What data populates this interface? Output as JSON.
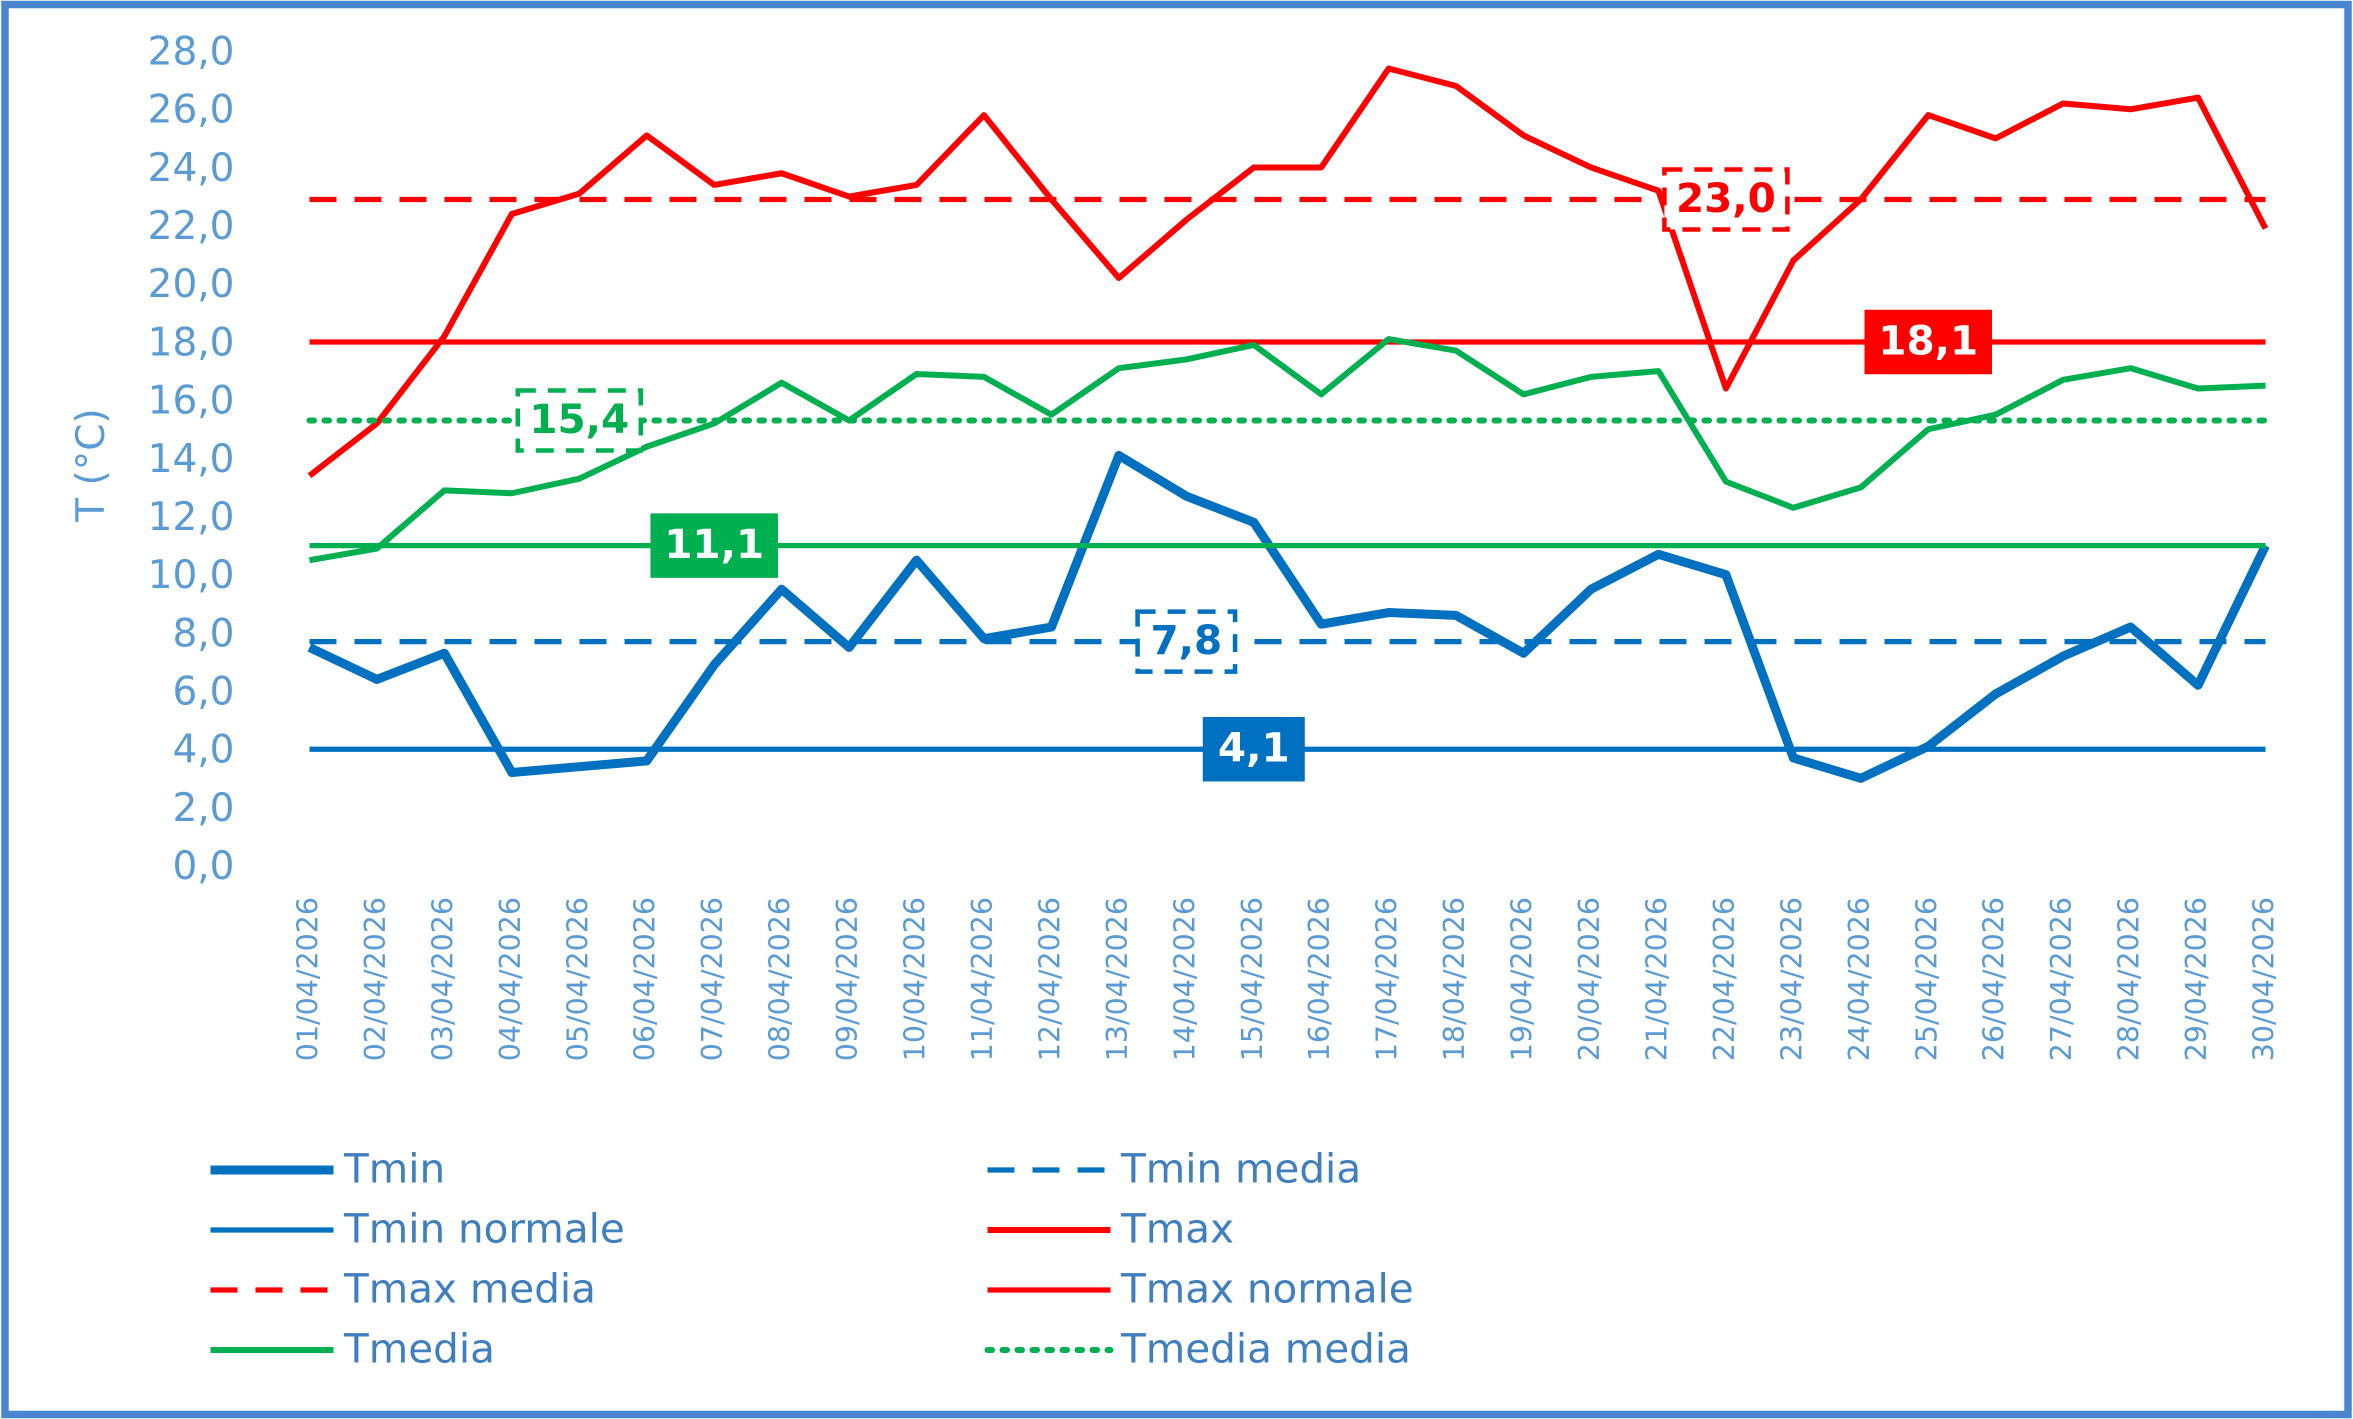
{
  "chart_data": {
    "type": "line",
    "y_label": "T (°C)",
    "ylim": [
      0,
      28
    ],
    "yticks": [
      {
        "value": 0,
        "label": "0,0"
      },
      {
        "value": 2,
        "label": "2,0"
      },
      {
        "value": 4,
        "label": "4,0"
      },
      {
        "value": 6,
        "label": "6,0"
      },
      {
        "value": 8,
        "label": "8,0"
      },
      {
        "value": 10,
        "label": "10,0"
      },
      {
        "value": 12,
        "label": "12,0"
      },
      {
        "value": 14,
        "label": "14,0"
      },
      {
        "value": 16,
        "label": "16,0"
      },
      {
        "value": 18,
        "label": "18,0"
      },
      {
        "value": 20,
        "label": "20,0"
      },
      {
        "value": 22,
        "label": "22,0"
      },
      {
        "value": 24,
        "label": "24,0"
      },
      {
        "value": 26,
        "label": "26,0"
      },
      {
        "value": 28,
        "label": "28,0"
      }
    ],
    "grid": false,
    "categories": [
      "01/04/2026",
      "02/04/2026",
      "03/04/2026",
      "04/04/2026",
      "05/04/2026",
      "06/04/2026",
      "07/04/2026",
      "08/04/2026",
      "09/04/2026",
      "10/04/2026",
      "11/04/2026",
      "12/04/2026",
      "13/04/2026",
      "14/04/2026",
      "15/04/2026",
      "16/04/2026",
      "17/04/2026",
      "18/04/2026",
      "19/04/2026",
      "20/04/2026",
      "21/04/2026",
      "22/04/2026",
      "23/04/2026",
      "24/04/2026",
      "25/04/2026",
      "26/04/2026",
      "27/04/2026",
      "28/04/2026",
      "29/04/2026",
      "30/04/2026"
    ],
    "series": [
      {
        "name": "Tmin",
        "color": "#0070c0",
        "width": 6,
        "dash": "solid",
        "values": [
          7.6,
          6.5,
          7.4,
          3.3,
          3.5,
          3.7,
          7.0,
          9.6,
          7.6,
          10.6,
          7.9,
          8.3,
          14.2,
          12.8,
          11.9,
          8.4,
          8.8,
          8.7,
          7.4,
          9.6,
          10.8,
          10.1,
          3.8,
          3.1,
          4.2,
          6.0,
          7.3,
          8.3,
          6.3,
          11.1
        ]
      },
      {
        "name": "Tmin media",
        "color": "#0070c0",
        "width": 3.5,
        "dash": "dashed",
        "label_style": "dashed",
        "values": [
          7.8,
          7.8,
          7.8,
          7.8,
          7.8,
          7.8,
          7.8,
          7.8,
          7.8,
          7.8,
          7.8,
          7.8,
          7.8,
          7.8,
          7.8,
          7.8,
          7.8,
          7.8,
          7.8,
          7.8,
          7.8,
          7.8,
          7.8,
          7.8,
          7.8,
          7.8,
          7.8,
          7.8,
          7.8,
          7.8
        ],
        "value_labels": [
          null,
          null,
          null,
          null,
          null,
          null,
          null,
          null,
          null,
          null,
          null,
          null,
          null,
          "7,8",
          null,
          null,
          null,
          null,
          null,
          null,
          null,
          null,
          null,
          null,
          null,
          null,
          null,
          null,
          null,
          null
        ]
      },
      {
        "name": "Tmin normale",
        "color": "#0070c0",
        "width": 3.5,
        "dash": "solid",
        "label_style": "filled",
        "values": [
          4.1,
          4.1,
          4.1,
          4.1,
          4.1,
          4.1,
          4.1,
          4.1,
          4.1,
          4.1,
          4.1,
          4.1,
          4.1,
          4.1,
          4.1,
          4.1,
          4.1,
          4.1,
          4.1,
          4.1,
          4.1,
          4.1,
          4.1,
          4.1,
          4.1,
          4.1,
          4.1,
          4.1,
          4.1,
          4.1
        ],
        "value_labels": [
          null,
          null,
          null,
          null,
          null,
          null,
          null,
          null,
          null,
          null,
          null,
          null,
          null,
          null,
          "4,1",
          null,
          null,
          null,
          null,
          null,
          null,
          null,
          null,
          null,
          null,
          null,
          null,
          null,
          null,
          null
        ]
      },
      {
        "name": "Tmax",
        "color": "#ff0000",
        "width": 4,
        "dash": "solid",
        "values": [
          13.5,
          15.3,
          18.3,
          22.5,
          23.2,
          25.2,
          23.5,
          23.9,
          23.1,
          23.5,
          25.9,
          23.0,
          20.3,
          22.3,
          24.1,
          24.1,
          27.5,
          26.9,
          25.2,
          24.1,
          23.3,
          16.5,
          20.9,
          23.0,
          25.9,
          25.1,
          26.3,
          26.1,
          26.5,
          22.0
        ]
      },
      {
        "name": "Tmax media",
        "color": "#ff0000",
        "width": 3.5,
        "dash": "dashed",
        "label_style": "dashed",
        "values": [
          23.0,
          23.0,
          23.0,
          23.0,
          23.0,
          23.0,
          23.0,
          23.0,
          23.0,
          23.0,
          23.0,
          23.0,
          23.0,
          23.0,
          23.0,
          23.0,
          23.0,
          23.0,
          23.0,
          23.0,
          23.0,
          23.0,
          23.0,
          23.0,
          23.0,
          23.0,
          23.0,
          23.0,
          23.0,
          23.0
        ],
        "value_labels": [
          null,
          null,
          null,
          null,
          null,
          null,
          null,
          null,
          null,
          null,
          null,
          null,
          null,
          null,
          null,
          null,
          null,
          null,
          null,
          null,
          null,
          "23,0",
          null,
          null,
          null,
          null,
          null,
          null,
          null,
          null
        ]
      },
      {
        "name": "Tmax normale",
        "color": "#ff0000",
        "width": 3.5,
        "dash": "solid",
        "label_style": "filled",
        "values": [
          18.1,
          18.1,
          18.1,
          18.1,
          18.1,
          18.1,
          18.1,
          18.1,
          18.1,
          18.1,
          18.1,
          18.1,
          18.1,
          18.1,
          18.1,
          18.1,
          18.1,
          18.1,
          18.1,
          18.1,
          18.1,
          18.1,
          18.1,
          18.1,
          18.1,
          18.1,
          18.1,
          18.1,
          18.1,
          18.1
        ],
        "value_labels": [
          null,
          null,
          null,
          null,
          null,
          null,
          null,
          null,
          null,
          null,
          null,
          null,
          null,
          null,
          null,
          null,
          null,
          null,
          null,
          null,
          null,
          null,
          null,
          null,
          "18,1",
          null,
          null,
          null,
          null,
          null
        ]
      },
      {
        "name": "Tmedia",
        "color": "#00b050",
        "width": 4,
        "dash": "solid",
        "values": [
          10.6,
          11.0,
          13.0,
          12.9,
          13.4,
          14.5,
          15.3,
          16.7,
          15.4,
          17.0,
          16.9,
          15.6,
          17.2,
          17.5,
          18.0,
          16.3,
          18.2,
          17.8,
          16.3,
          16.9,
          17.1,
          13.3,
          12.4,
          13.1,
          15.1,
          15.6,
          16.8,
          17.2,
          16.5,
          16.6
        ]
      },
      {
        "name": "Tmedia media",
        "color": "#00b050",
        "width": 4,
        "dash": "dotted",
        "label_style": "dashed",
        "values": [
          15.4,
          15.4,
          15.4,
          15.4,
          15.4,
          15.4,
          15.4,
          15.4,
          15.4,
          15.4,
          15.4,
          15.4,
          15.4,
          15.4,
          15.4,
          15.4,
          15.4,
          15.4,
          15.4,
          15.4,
          15.4,
          15.4,
          15.4,
          15.4,
          15.4,
          15.4,
          15.4,
          15.4,
          15.4,
          15.4
        ],
        "value_labels": [
          null,
          null,
          null,
          null,
          "15,4",
          null,
          null,
          null,
          null,
          null,
          null,
          null,
          null,
          null,
          null,
          null,
          null,
          null,
          null,
          null,
          null,
          null,
          null,
          null,
          null,
          null,
          null,
          null,
          null,
          null
        ]
      },
      {
        "color": "#00b050",
        "width": 3.5,
        "dash": "solid",
        "label_style": "filled",
        "values": [
          11.1,
          11.1,
          11.1,
          11.1,
          11.1,
          11.1,
          11.1,
          11.1,
          11.1,
          11.1,
          11.1,
          11.1,
          11.1,
          11.1,
          11.1,
          11.1,
          11.1,
          11.1,
          11.1,
          11.1,
          11.1,
          11.1,
          11.1,
          11.1,
          11.1,
          11.1,
          11.1,
          11.1,
          11.1,
          11.1
        ],
        "value_labels": [
          null,
          null,
          null,
          null,
          null,
          null,
          "11,1",
          null,
          null,
          null,
          null,
          null,
          null,
          null,
          null,
          null,
          null,
          null,
          null,
          null,
          null,
          null,
          null,
          null,
          null,
          null,
          null,
          null,
          null,
          null
        ]
      }
    ]
  }
}
